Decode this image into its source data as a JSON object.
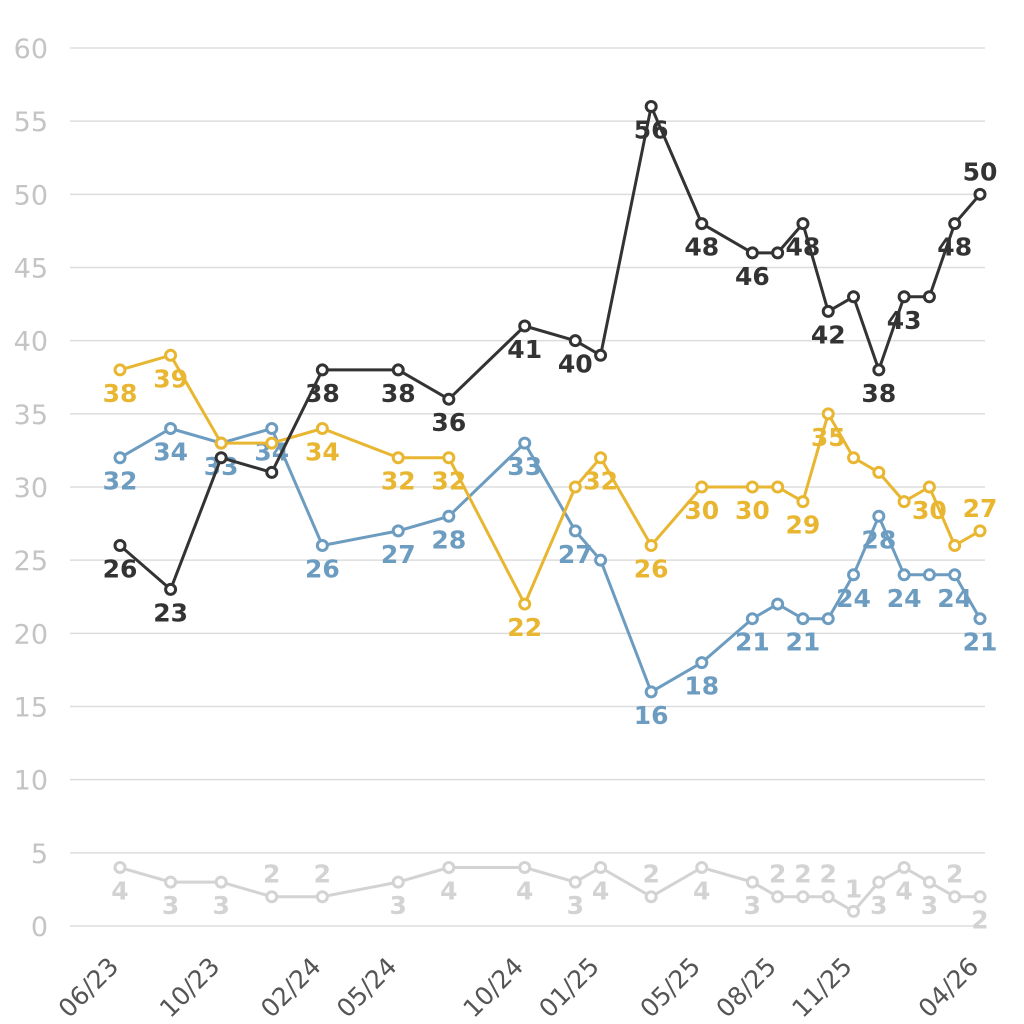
{
  "chart_data": {
    "type": "line",
    "title": "",
    "xlabel": "",
    "ylabel": "",
    "ylim": [
      0,
      60
    ],
    "yticks": [
      "0",
      "5",
      "10",
      "15",
      "20",
      "25",
      "30",
      "35",
      "40",
      "45",
      "50",
      "55",
      "60"
    ],
    "x_tick_labels": [
      "06/23",
      "10/23",
      "02/24",
      "05/24",
      "10/24",
      "01/25",
      "05/25",
      "08/25",
      "11/25",
      "04/26"
    ],
    "x_tick_positions": [
      0,
      4,
      8,
      11,
      16,
      19,
      23,
      26,
      29,
      34
    ],
    "x_range": [
      0,
      34
    ],
    "grid": true,
    "legend": "none",
    "series": [
      {
        "name": "gray",
        "color": "#d3d3d3",
        "x": [
          0,
          2,
          4,
          6,
          8,
          11,
          13,
          16,
          18,
          19,
          21,
          23,
          25,
          26,
          27,
          28,
          29,
          30,
          31,
          32,
          33,
          34
        ],
        "values": [
          4,
          3,
          3,
          2,
          2,
          3,
          4,
          4,
          3,
          4,
          2,
          4,
          3,
          2,
          2,
          2,
          1,
          3,
          4,
          3,
          2,
          2
        ],
        "label_values": [
          "4",
          "3",
          "3",
          "2",
          "2",
          "3",
          "4",
          "4",
          "3",
          "4",
          "2",
          "4",
          "3",
          "2",
          "2",
          "2",
          "1",
          "3",
          "4",
          "3",
          "2",
          "2"
        ],
        "label_pos": [
          "below",
          "below",
          "below",
          "above",
          "above",
          "below",
          "below",
          "below",
          "below",
          "below",
          "above",
          "below",
          "below",
          "above",
          "above",
          "above",
          "above",
          "below",
          "below",
          "below",
          "above",
          "below"
        ]
      },
      {
        "name": "blue",
        "color": "#6d9cc1",
        "x": [
          0,
          2,
          4,
          6,
          8,
          11,
          13,
          16,
          18,
          19,
          21,
          23,
          25,
          26,
          27,
          28,
          29,
          30,
          31,
          32,
          33,
          34
        ],
        "values": [
          32,
          34,
          33,
          34,
          26,
          27,
          28,
          33,
          27,
          25,
          16,
          18,
          21,
          22,
          21,
          21,
          24,
          28,
          24,
          24,
          24,
          21
        ],
        "label_values": [
          "32",
          "34",
          "33",
          "34",
          "26",
          "27",
          "28",
          "33",
          "27",
          "",
          "16",
          "18",
          "21",
          "",
          "21",
          "",
          "24",
          "28",
          "24",
          "",
          "24",
          "21"
        ],
        "label_pos": [
          "below",
          "below",
          "below",
          "below",
          "below",
          "below",
          "below",
          "below",
          "below",
          "below",
          "below",
          "below",
          "below",
          "below",
          "below",
          "below",
          "below",
          "below",
          "below",
          "below",
          "below",
          "below"
        ]
      },
      {
        "name": "yellow",
        "color": "#e8b631",
        "x": [
          0,
          2,
          4,
          6,
          8,
          11,
          13,
          16,
          18,
          19,
          21,
          23,
          25,
          26,
          27,
          28,
          29,
          30,
          31,
          32,
          33,
          34
        ],
        "values": [
          38,
          39,
          33,
          33,
          34,
          32,
          32,
          22,
          30,
          32,
          26,
          30,
          30,
          30,
          29,
          35,
          32,
          31,
          29,
          30,
          26,
          27
        ],
        "label_values": [
          "38",
          "39",
          "",
          "",
          "34",
          "32",
          "32",
          "22",
          "",
          "32",
          "26",
          "30",
          "30",
          "",
          "29",
          "35",
          "",
          "",
          "",
          "30",
          "",
          "27"
        ],
        "label_pos": [
          "below",
          "below",
          "below",
          "below",
          "below",
          "below",
          "below",
          "below",
          "below",
          "below",
          "below",
          "below",
          "below",
          "below",
          "below",
          "below",
          "below",
          "below",
          "below",
          "below",
          "below",
          "above"
        ]
      },
      {
        "name": "dark",
        "color": "#333333",
        "x": [
          0,
          2,
          4,
          6,
          8,
          11,
          13,
          16,
          18,
          19,
          21,
          23,
          25,
          26,
          27,
          28,
          29,
          30,
          31,
          32,
          33,
          34
        ],
        "values": [
          26,
          23,
          32,
          31,
          38,
          38,
          36,
          41,
          40,
          39,
          56,
          48,
          46,
          46,
          48,
          42,
          43,
          38,
          43,
          43,
          48,
          50
        ],
        "label_values": [
          "26",
          "23",
          "",
          "",
          "38",
          "38",
          "36",
          "41",
          "40",
          "",
          "56",
          "48",
          "46",
          "",
          "48",
          "42",
          "",
          "38",
          "43",
          "",
          "48",
          "50"
        ],
        "label_pos": [
          "below",
          "below",
          "below",
          "below",
          "below",
          "below",
          "below",
          "below",
          "below",
          "below",
          "below",
          "below",
          "below",
          "below",
          "below",
          "below",
          "below",
          "below",
          "below",
          "below",
          "below",
          "above"
        ]
      }
    ]
  }
}
